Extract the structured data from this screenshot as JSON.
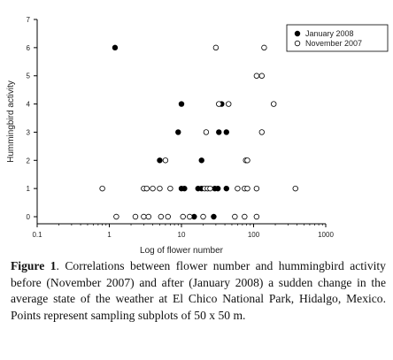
{
  "caption": {
    "label": "Figure 1",
    "text": ". Correlations between flower number and hummingbird activity before (November 2007) and after (January 2008) a sudden change in the average state of the weather at El Chico National Park, Hidalgo, Mexico. Points represent sampling subplots of 50 x 50 m."
  },
  "chart_data": {
    "type": "scatter",
    "xlabel": "Log of flower number",
    "ylabel": "Hummingbird activity",
    "xscale": "log",
    "xlim": [
      0.1,
      1000
    ],
    "ylim": [
      0,
      7
    ],
    "xticks": [
      0.1,
      1,
      10,
      100,
      1000
    ],
    "xtick_labels": [
      "0.1",
      "1",
      "10",
      "100",
      "1000"
    ],
    "yticks": [
      0,
      1,
      2,
      3,
      4,
      5,
      6,
      7
    ],
    "ytick_labels": [
      "0",
      "1",
      "2",
      "3",
      "4",
      "5",
      "6",
      "7"
    ],
    "grid": false,
    "legend": {
      "position": "top-right"
    },
    "series": [
      {
        "name": "January 2008",
        "marker": "filled-circle",
        "color": "#000000",
        "points": [
          [
            1.2,
            6
          ],
          [
            10,
            4
          ],
          [
            36,
            4
          ],
          [
            9,
            3
          ],
          [
            33,
            3
          ],
          [
            42,
            3
          ],
          [
            5,
            2
          ],
          [
            19,
            2
          ],
          [
            10,
            1
          ],
          [
            11,
            1
          ],
          [
            17,
            1
          ],
          [
            19,
            1
          ],
          [
            29,
            1
          ],
          [
            32,
            1
          ],
          [
            42,
            1
          ],
          [
            15,
            0
          ],
          [
            28,
            0
          ]
        ]
      },
      {
        "name": "November 2007",
        "marker": "open-circle",
        "color": "#000000",
        "points": [
          [
            30,
            6
          ],
          [
            140,
            6
          ],
          [
            110,
            5
          ],
          [
            130,
            5
          ],
          [
            33,
            4
          ],
          [
            45,
            4
          ],
          [
            190,
            4
          ],
          [
            22,
            3
          ],
          [
            130,
            3
          ],
          [
            6,
            2
          ],
          [
            78,
            2
          ],
          [
            82,
            2
          ],
          [
            0.8,
            1
          ],
          [
            3,
            1
          ],
          [
            3.3,
            1
          ],
          [
            4,
            1
          ],
          [
            5,
            1
          ],
          [
            7,
            1
          ],
          [
            21,
            1
          ],
          [
            23,
            1
          ],
          [
            25,
            1
          ],
          [
            60,
            1
          ],
          [
            75,
            1
          ],
          [
            82,
            1
          ],
          [
            110,
            1
          ],
          [
            380,
            1
          ],
          [
            1.25,
            0
          ],
          [
            2.3,
            0
          ],
          [
            3,
            0
          ],
          [
            3.5,
            0
          ],
          [
            5.2,
            0
          ],
          [
            6.5,
            0
          ],
          [
            10.5,
            0
          ],
          [
            13,
            0
          ],
          [
            20,
            0
          ],
          [
            55,
            0
          ],
          [
            75,
            0
          ],
          [
            110,
            0
          ]
        ]
      }
    ]
  }
}
